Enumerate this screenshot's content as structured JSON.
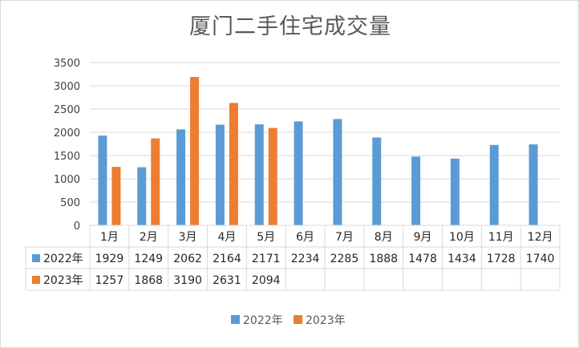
{
  "chart_data": {
    "type": "bar",
    "title": "厦门二手住宅成交量",
    "categories": [
      "1月",
      "2月",
      "3月",
      "4月",
      "5月",
      "6月",
      "7月",
      "8月",
      "9月",
      "10月",
      "11月",
      "12月"
    ],
    "series": [
      {
        "name": "2022年",
        "color": "#5b9bd5",
        "values": [
          1929,
          1249,
          2062,
          2164,
          2171,
          2234,
          2285,
          1888,
          1478,
          1434,
          1728,
          1740
        ]
      },
      {
        "name": "2023年",
        "color": "#ed7d31",
        "values": [
          1257,
          1868,
          3190,
          2631,
          2094,
          null,
          null,
          null,
          null,
          null,
          null,
          null
        ]
      }
    ],
    "yticks": [
      "0",
      "500",
      "1000",
      "1500",
      "2000",
      "2500",
      "3000",
      "3500"
    ],
    "ylim": [
      0,
      3500
    ],
    "grid": true,
    "legend": "bottom",
    "data_table": true
  }
}
